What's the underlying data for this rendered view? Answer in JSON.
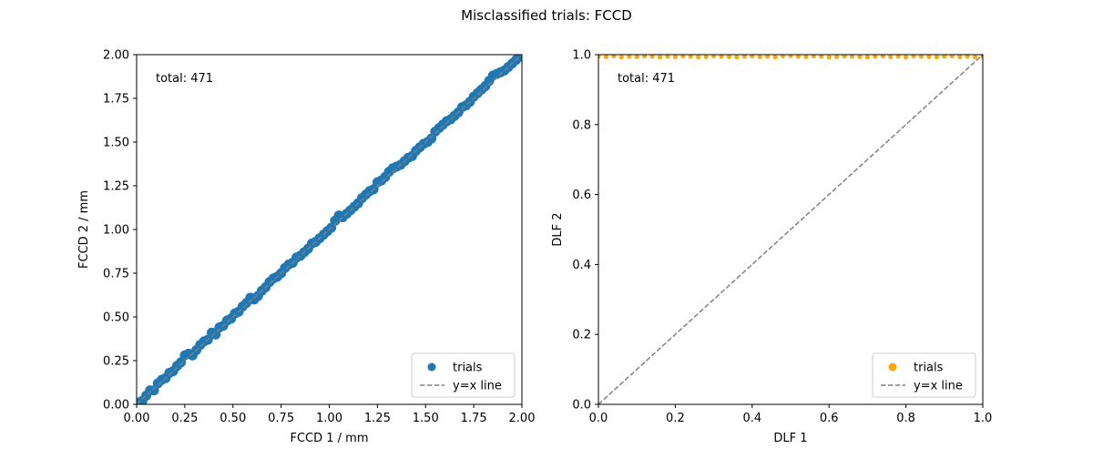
{
  "figure": {
    "title": "Misclassified trials: FCCD"
  },
  "chart_data": [
    {
      "type": "scatter",
      "xlabel": "FCCD 1 / mm",
      "ylabel": "FCCD 2 / mm",
      "xlim": [
        0,
        2
      ],
      "ylim": [
        0,
        2
      ],
      "xticks": [
        "0.00",
        "0.25",
        "0.50",
        "0.75",
        "1.00",
        "1.25",
        "1.50",
        "1.75",
        "2.00"
      ],
      "yticks": [
        "0.00",
        "0.25",
        "0.50",
        "0.75",
        "1.00",
        "1.25",
        "1.50",
        "1.75",
        "2.00"
      ],
      "annotation": "total: 471",
      "legend_position": "lower-right",
      "series": [
        {
          "name": "trials",
          "color": "#1f77b4",
          "points": [
            [
              0.01,
              0.01
            ],
            [
              0.03,
              0.02
            ],
            [
              0.05,
              0.05
            ],
            [
              0.07,
              0.08
            ],
            [
              0.09,
              0.08
            ],
            [
              0.11,
              0.12
            ],
            [
              0.13,
              0.14
            ],
            [
              0.15,
              0.15
            ],
            [
              0.17,
              0.18
            ],
            [
              0.19,
              0.19
            ],
            [
              0.21,
              0.22
            ],
            [
              0.23,
              0.24
            ],
            [
              0.25,
              0.28
            ],
            [
              0.27,
              0.29
            ],
            [
              0.29,
              0.28
            ],
            [
              0.31,
              0.31
            ],
            [
              0.33,
              0.34
            ],
            [
              0.35,
              0.36
            ],
            [
              0.37,
              0.37
            ],
            [
              0.39,
              0.41
            ],
            [
              0.41,
              0.4
            ],
            [
              0.43,
              0.44
            ],
            [
              0.45,
              0.45
            ],
            [
              0.47,
              0.48
            ],
            [
              0.49,
              0.49
            ],
            [
              0.51,
              0.52
            ],
            [
              0.53,
              0.53
            ],
            [
              0.55,
              0.56
            ],
            [
              0.57,
              0.58
            ],
            [
              0.59,
              0.61
            ],
            [
              0.61,
              0.6
            ],
            [
              0.63,
              0.62
            ],
            [
              0.65,
              0.65
            ],
            [
              0.67,
              0.67
            ],
            [
              0.69,
              0.7
            ],
            [
              0.71,
              0.72
            ],
            [
              0.73,
              0.73
            ],
            [
              0.75,
              0.75
            ],
            [
              0.77,
              0.78
            ],
            [
              0.79,
              0.8
            ],
            [
              0.81,
              0.81
            ],
            [
              0.83,
              0.84
            ],
            [
              0.85,
              0.85
            ],
            [
              0.87,
              0.87
            ],
            [
              0.89,
              0.89
            ],
            [
              0.91,
              0.92
            ],
            [
              0.93,
              0.93
            ],
            [
              0.95,
              0.95
            ],
            [
              0.97,
              0.97
            ],
            [
              0.99,
              0.99
            ],
            [
              1.01,
              1.01
            ],
            [
              1.03,
              1.05
            ],
            [
              1.05,
              1.08
            ],
            [
              1.07,
              1.07
            ],
            [
              1.09,
              1.09
            ],
            [
              1.11,
              1.11
            ],
            [
              1.13,
              1.13
            ],
            [
              1.15,
              1.15
            ],
            [
              1.17,
              1.18
            ],
            [
              1.19,
              1.2
            ],
            [
              1.21,
              1.22
            ],
            [
              1.23,
              1.23
            ],
            [
              1.25,
              1.27
            ],
            [
              1.27,
              1.28
            ],
            [
              1.29,
              1.3
            ],
            [
              1.31,
              1.33
            ],
            [
              1.33,
              1.35
            ],
            [
              1.35,
              1.36
            ],
            [
              1.37,
              1.37
            ],
            [
              1.39,
              1.39
            ],
            [
              1.41,
              1.41
            ],
            [
              1.43,
              1.42
            ],
            [
              1.45,
              1.45
            ],
            [
              1.47,
              1.47
            ],
            [
              1.49,
              1.49
            ],
            [
              1.51,
              1.5
            ],
            [
              1.53,
              1.52
            ],
            [
              1.55,
              1.56
            ],
            [
              1.57,
              1.58
            ],
            [
              1.59,
              1.6
            ],
            [
              1.61,
              1.62
            ],
            [
              1.63,
              1.63
            ],
            [
              1.65,
              1.65
            ],
            [
              1.67,
              1.67
            ],
            [
              1.69,
              1.7
            ],
            [
              1.71,
              1.71
            ],
            [
              1.73,
              1.73
            ],
            [
              1.75,
              1.76
            ],
            [
              1.77,
              1.78
            ],
            [
              1.79,
              1.8
            ],
            [
              1.81,
              1.82
            ],
            [
              1.83,
              1.85
            ],
            [
              1.85,
              1.88
            ],
            [
              1.87,
              1.89
            ],
            [
              1.89,
              1.9
            ],
            [
              1.91,
              1.91
            ],
            [
              1.93,
              1.93
            ],
            [
              1.95,
              1.95
            ],
            [
              1.97,
              1.97
            ],
            [
              1.99,
              1.99
            ]
          ]
        },
        {
          "name": "y=x line",
          "color": "#808080",
          "style": "dashed",
          "points": [
            [
              0,
              0
            ],
            [
              2,
              2
            ]
          ]
        }
      ]
    },
    {
      "type": "scatter",
      "xlabel": "DLF 1",
      "ylabel": "DLF 2",
      "xlim": [
        0,
        1
      ],
      "ylim": [
        0,
        1
      ],
      "xticks": [
        "0.0",
        "0.2",
        "0.4",
        "0.6",
        "0.8",
        "1.0"
      ],
      "yticks": [
        "0.0",
        "0.2",
        "0.4",
        "0.6",
        "0.8",
        "1.0"
      ],
      "annotation": "total: 471",
      "legend_position": "lower-right",
      "series": [
        {
          "name": "trials",
          "color": "#ffa500",
          "points": [
            [
              0.0,
              0.995
            ],
            [
              0.02,
              0.994
            ],
            [
              0.04,
              0.996
            ],
            [
              0.06,
              0.993
            ],
            [
              0.08,
              0.995
            ],
            [
              0.1,
              0.994
            ],
            [
              0.12,
              0.996
            ],
            [
              0.14,
              0.995
            ],
            [
              0.16,
              0.993
            ],
            [
              0.18,
              0.995
            ],
            [
              0.2,
              0.994
            ],
            [
              0.22,
              0.996
            ],
            [
              0.24,
              0.995
            ],
            [
              0.26,
              0.993
            ],
            [
              0.28,
              0.994
            ],
            [
              0.3,
              0.996
            ],
            [
              0.32,
              0.995
            ],
            [
              0.34,
              0.994
            ],
            [
              0.36,
              0.993
            ],
            [
              0.38,
              0.995
            ],
            [
              0.4,
              0.996
            ],
            [
              0.42,
              0.994
            ],
            [
              0.44,
              0.995
            ],
            [
              0.46,
              0.993
            ],
            [
              0.48,
              0.996
            ],
            [
              0.5,
              0.997
            ],
            [
              0.52,
              0.995
            ],
            [
              0.54,
              0.994
            ],
            [
              0.56,
              0.996
            ],
            [
              0.58,
              0.995
            ],
            [
              0.6,
              0.993
            ],
            [
              0.62,
              0.994
            ],
            [
              0.64,
              0.996
            ],
            [
              0.66,
              0.995
            ],
            [
              0.68,
              0.994
            ],
            [
              0.7,
              0.993
            ],
            [
              0.72,
              0.995
            ],
            [
              0.74,
              0.996
            ],
            [
              0.76,
              0.994
            ],
            [
              0.78,
              0.995
            ],
            [
              0.8,
              0.993
            ],
            [
              0.82,
              0.996
            ],
            [
              0.84,
              0.995
            ],
            [
              0.86,
              0.994
            ],
            [
              0.88,
              0.993
            ],
            [
              0.9,
              0.995
            ],
            [
              0.92,
              0.996
            ],
            [
              0.94,
              0.994
            ],
            [
              0.96,
              0.995
            ],
            [
              0.98,
              0.993
            ],
            [
              1.0,
              0.995
            ]
          ]
        },
        {
          "name": "y=x line",
          "color": "#808080",
          "style": "dashed",
          "points": [
            [
              0,
              0
            ],
            [
              1,
              1
            ]
          ]
        }
      ]
    }
  ]
}
